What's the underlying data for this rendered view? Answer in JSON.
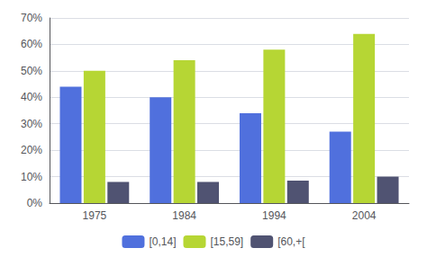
{
  "chart_data": {
    "type": "bar",
    "categories": [
      "1975",
      "1984",
      "1994",
      "2004"
    ],
    "series": [
      {
        "name": "[0,14]",
        "values": [
          0.44,
          0.4,
          0.34,
          0.27
        ]
      },
      {
        "name": "[15,59]",
        "values": [
          0.5,
          0.54,
          0.58,
          0.64
        ]
      },
      {
        "name": "[60,+[",
        "values": [
          0.08,
          0.08,
          0.085,
          0.1
        ]
      }
    ],
    "ylim": [
      0,
      0.7
    ],
    "yticks": [
      {
        "value": 0.0,
        "label": "0%"
      },
      {
        "value": 0.1,
        "label": "10%"
      },
      {
        "value": 0.2,
        "label": "20%"
      },
      {
        "value": 0.3,
        "label": "30%"
      },
      {
        "value": 0.4,
        "label": "40%"
      },
      {
        "value": 0.5,
        "label": "50%"
      },
      {
        "value": 0.6,
        "label": "60%"
      },
      {
        "value": 0.7,
        "label": "70%"
      }
    ],
    "grid": true,
    "legend": "bottom"
  }
}
